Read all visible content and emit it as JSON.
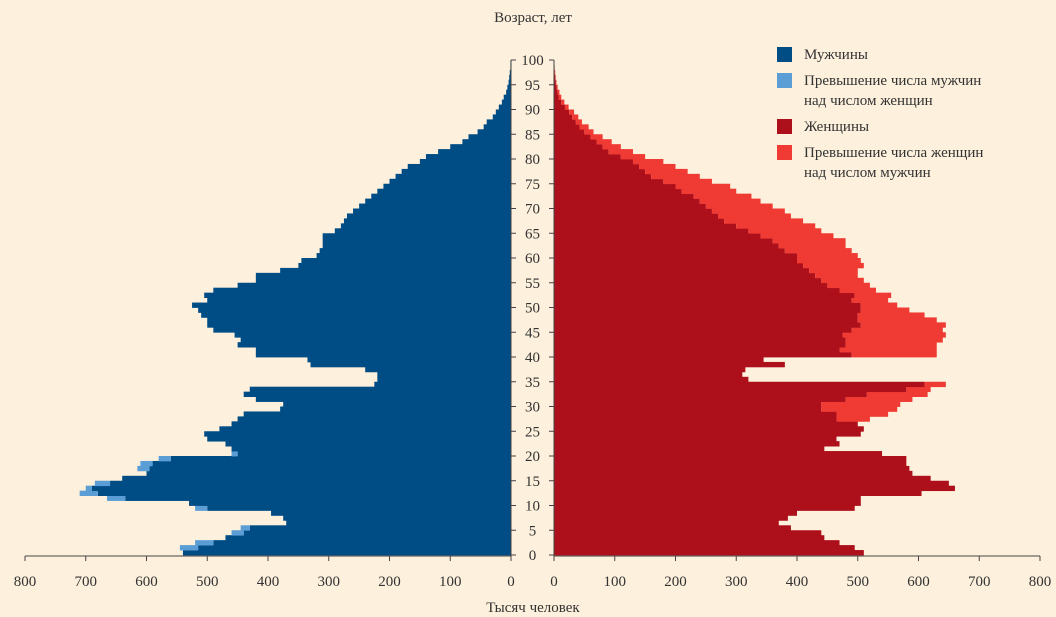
{
  "chart_data": {
    "type": "bar",
    "subtype": "population-pyramid",
    "y_title": "Возраст, лет",
    "x_title": "Тысяч человек",
    "age_ticks": [
      0,
      5,
      10,
      15,
      20,
      25,
      30,
      35,
      40,
      45,
      50,
      55,
      60,
      65,
      70,
      75,
      80,
      85,
      90,
      95,
      100
    ],
    "x_ticks": [
      800,
      700,
      600,
      500,
      400,
      300,
      200,
      100,
      0
    ],
    "xlim": [
      0,
      800
    ],
    "ylim": [
      0,
      100
    ],
    "legend_position": "top-right",
    "colors": {
      "men": "#004c85",
      "men_excess": "#5b9ed6",
      "women": "#ad0f1b",
      "women_excess": "#ef3b33"
    },
    "legend": [
      {
        "key": "men",
        "lines": [
          "Мужчины"
        ]
      },
      {
        "key": "men_excess",
        "lines": [
          "Превышение числа мужчин",
          "над числом женщин"
        ]
      },
      {
        "key": "women",
        "lines": [
          "Женщины"
        ]
      },
      {
        "key": "women_excess",
        "lines": [
          "Превышение числа женщин",
          "над числом мужчин"
        ]
      }
    ],
    "ages": [
      0,
      1,
      2,
      3,
      4,
      5,
      6,
      7,
      8,
      9,
      10,
      11,
      12,
      13,
      14,
      15,
      16,
      17,
      18,
      19,
      20,
      21,
      22,
      23,
      24,
      25,
      26,
      27,
      28,
      29,
      30,
      31,
      32,
      33,
      34,
      35,
      36,
      37,
      38,
      39,
      40,
      41,
      42,
      43,
      44,
      45,
      46,
      47,
      48,
      49,
      50,
      51,
      52,
      53,
      54,
      55,
      56,
      57,
      58,
      59,
      60,
      61,
      62,
      63,
      64,
      65,
      66,
      67,
      68,
      69,
      70,
      71,
      72,
      73,
      74,
      75,
      76,
      77,
      78,
      79,
      80,
      81,
      82,
      83,
      84,
      85,
      86,
      87,
      88,
      89,
      90,
      91,
      92,
      93,
      94,
      95,
      96,
      97,
      98,
      99,
      100
    ],
    "men": [
      540,
      515,
      490,
      470,
      440,
      430,
      370,
      375,
      395,
      500,
      530,
      635,
      680,
      690,
      660,
      640,
      600,
      595,
      590,
      560,
      450,
      460,
      470,
      500,
      505,
      480,
      460,
      450,
      440,
      380,
      375,
      420,
      440,
      430,
      225,
      220,
      220,
      240,
      330,
      335,
      420,
      420,
      450,
      445,
      455,
      490,
      500,
      500,
      510,
      515,
      525,
      500,
      505,
      490,
      450,
      420,
      420,
      380,
      350,
      345,
      320,
      315,
      310,
      310,
      310,
      290,
      280,
      275,
      270,
      260,
      250,
      240,
      230,
      220,
      210,
      200,
      190,
      180,
      170,
      150,
      140,
      120,
      100,
      80,
      70,
      55,
      45,
      40,
      30,
      25,
      20,
      15,
      12,
      8,
      6,
      4,
      3,
      2,
      1,
      1,
      0
    ],
    "men_excess": [
      0,
      30,
      30,
      0,
      20,
      15,
      0,
      0,
      0,
      20,
      0,
      30,
      30,
      10,
      25,
      0,
      0,
      20,
      20,
      20,
      10,
      0,
      0,
      0,
      0,
      0,
      0,
      0,
      0,
      0,
      0,
      0,
      0,
      0,
      0,
      0,
      0,
      0,
      0,
      0,
      0,
      0,
      0,
      0,
      0,
      0,
      0,
      0,
      0,
      0,
      0,
      0,
      0,
      0,
      0,
      0,
      0,
      0,
      0,
      0,
      0,
      0,
      0,
      0,
      0,
      0,
      0,
      0,
      0,
      0,
      0,
      0,
      0,
      0,
      0,
      0,
      0,
      0,
      0,
      0,
      0,
      0,
      0,
      0,
      0,
      0,
      0,
      0,
      0,
      0,
      0,
      0,
      0,
      0,
      0,
      0,
      0,
      0,
      0,
      0,
      0
    ],
    "women": [
      510,
      495,
      470,
      445,
      440,
      390,
      370,
      385,
      400,
      495,
      505,
      505,
      605,
      660,
      650,
      620,
      590,
      585,
      580,
      580,
      540,
      445,
      470,
      465,
      505,
      510,
      500,
      465,
      465,
      440,
      440,
      480,
      515,
      580,
      610,
      320,
      310,
      315,
      380,
      345,
      490,
      470,
      480,
      480,
      475,
      490,
      505,
      500,
      500,
      505,
      505,
      490,
      495,
      470,
      450,
      440,
      430,
      420,
      410,
      400,
      400,
      380,
      370,
      360,
      340,
      320,
      300,
      280,
      270,
      260,
      250,
      240,
      230,
      210,
      200,
      180,
      160,
      150,
      140,
      130,
      110,
      90,
      80,
      70,
      60,
      50,
      42,
      36,
      30,
      25,
      18,
      12,
      8,
      6,
      4,
      3,
      2,
      1,
      1,
      0,
      0
    ],
    "women_excess": [
      0,
      0,
      0,
      0,
      0,
      0,
      0,
      0,
      0,
      0,
      0,
      0,
      0,
      0,
      0,
      0,
      0,
      0,
      0,
      0,
      0,
      0,
      0,
      0,
      0,
      0,
      0,
      55,
      85,
      125,
      130,
      110,
      100,
      40,
      35,
      0,
      0,
      0,
      0,
      0,
      140,
      160,
      150,
      160,
      170,
      150,
      140,
      130,
      110,
      80,
      60,
      60,
      60,
      60,
      70,
      70,
      70,
      80,
      100,
      105,
      100,
      110,
      110,
      120,
      120,
      120,
      130,
      130,
      120,
      120,
      110,
      100,
      95,
      90,
      90,
      80,
      80,
      70,
      60,
      50,
      40,
      40,
      30,
      25,
      20,
      15,
      15,
      10,
      10,
      8,
      6,
      5,
      4,
      3,
      2,
      1,
      1,
      1,
      0,
      0,
      0
    ]
  }
}
